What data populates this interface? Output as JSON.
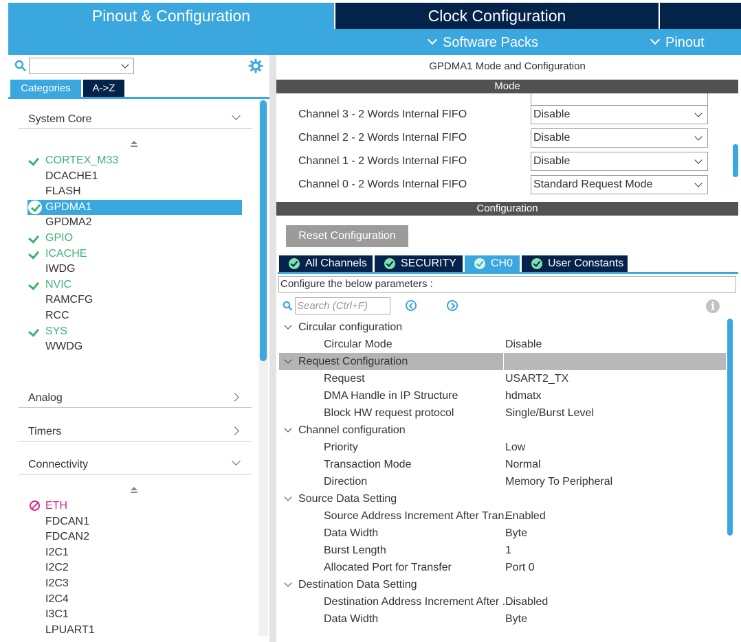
{
  "top_tabs": {
    "pinout": "Pinout & Configuration",
    "clock": "Clock Configuration"
  },
  "subbar": {
    "software_packs": "Software Packs",
    "pinout": "Pinout"
  },
  "left": {
    "search_value": "",
    "tabs": {
      "categories": "Categories",
      "az": "A->Z"
    },
    "sections": {
      "system_core": "System Core",
      "analog": "Analog",
      "timers": "Timers",
      "connectivity": "Connectivity"
    },
    "system_core_items": [
      {
        "label": "CORTEX_M33",
        "state": "enabled"
      },
      {
        "label": "DCACHE1",
        "state": "none"
      },
      {
        "label": "FLASH",
        "state": "none"
      },
      {
        "label": "GPDMA1",
        "state": "selected"
      },
      {
        "label": "GPDMA2",
        "state": "none"
      },
      {
        "label": "GPIO",
        "state": "enabled"
      },
      {
        "label": "ICACHE",
        "state": "enabled"
      },
      {
        "label": "IWDG",
        "state": "none"
      },
      {
        "label": "NVIC",
        "state": "enabled"
      },
      {
        "label": "RAMCFG",
        "state": "none"
      },
      {
        "label": "RCC",
        "state": "none"
      },
      {
        "label": "SYS",
        "state": "enabled"
      },
      {
        "label": "WWDG",
        "state": "none"
      }
    ],
    "connectivity_items": [
      {
        "label": "ETH",
        "state": "error"
      },
      {
        "label": "FDCAN1",
        "state": "none"
      },
      {
        "label": "FDCAN2",
        "state": "none"
      },
      {
        "label": "I2C1",
        "state": "none"
      },
      {
        "label": "I2C2",
        "state": "none"
      },
      {
        "label": "I2C3",
        "state": "none"
      },
      {
        "label": "I2C4",
        "state": "none"
      },
      {
        "label": "I3C1",
        "state": "none"
      },
      {
        "label": "LPUART1",
        "state": "none"
      }
    ]
  },
  "right": {
    "title": "GPDMA1 Mode and Configuration",
    "mode_header": "Mode",
    "mode_rows": [
      {
        "label": "Channel 3  - 2 Words Internal FIFO",
        "value": "Disable"
      },
      {
        "label": "Channel 2  - 2 Words Internal FIFO",
        "value": "Disable"
      },
      {
        "label": "Channel 1  - 2 Words Internal FIFO",
        "value": "Disable"
      },
      {
        "label": "Channel 0  - 2 Words Internal FIFO",
        "value": "Standard Request Mode"
      }
    ],
    "config_header": "Configuration",
    "reset_button": "Reset Configuration",
    "config_tabs": [
      {
        "label": "All Channels",
        "active": false
      },
      {
        "label": "SECURITY",
        "active": false
      },
      {
        "label": "CH0",
        "active": true
      },
      {
        "label": "User Constants",
        "active": false
      }
    ],
    "params_hint": "Configure the below parameters :",
    "search_placeholder": "Search (Ctrl+F)",
    "info_glyph": "i",
    "params": [
      {
        "type": "group",
        "name": "Circular configuration"
      },
      {
        "type": "param",
        "name": "Circular Mode",
        "value": "Disable"
      },
      {
        "type": "group",
        "name": "Request Configuration",
        "highlight": true
      },
      {
        "type": "param",
        "name": "Request",
        "value": "USART2_TX"
      },
      {
        "type": "param",
        "name": "DMA Handle in IP Structure",
        "value": "hdmatx"
      },
      {
        "type": "param",
        "name": "Block HW request protocol",
        "value": "Single/Burst Level"
      },
      {
        "type": "group",
        "name": "Channel configuration"
      },
      {
        "type": "param",
        "name": "Priority",
        "value": "Low"
      },
      {
        "type": "param",
        "name": "Transaction Mode",
        "value": "Normal"
      },
      {
        "type": "param",
        "name": "Direction",
        "value": "Memory To Peripheral"
      },
      {
        "type": "group",
        "name": "Source Data Setting"
      },
      {
        "type": "param",
        "name": "Source Address Increment After Tran...",
        "value": "Enabled"
      },
      {
        "type": "param",
        "name": "Data Width",
        "value": "Byte"
      },
      {
        "type": "param",
        "name": "Burst Length",
        "value": "1"
      },
      {
        "type": "param",
        "name": "Allocated Port for Transfer",
        "value": "Port 0"
      },
      {
        "type": "group",
        "name": "Destination Data Setting"
      },
      {
        "type": "param",
        "name": "Destination Address Increment After ...",
        "value": "Disabled"
      },
      {
        "type": "param",
        "name": "Data Width",
        "value": "Byte"
      }
    ]
  },
  "colors": {
    "accent_blue": "#3aa7de",
    "navy": "#03234b",
    "enabled_green": "#3cb371",
    "error_magenta": "#e0218a"
  }
}
